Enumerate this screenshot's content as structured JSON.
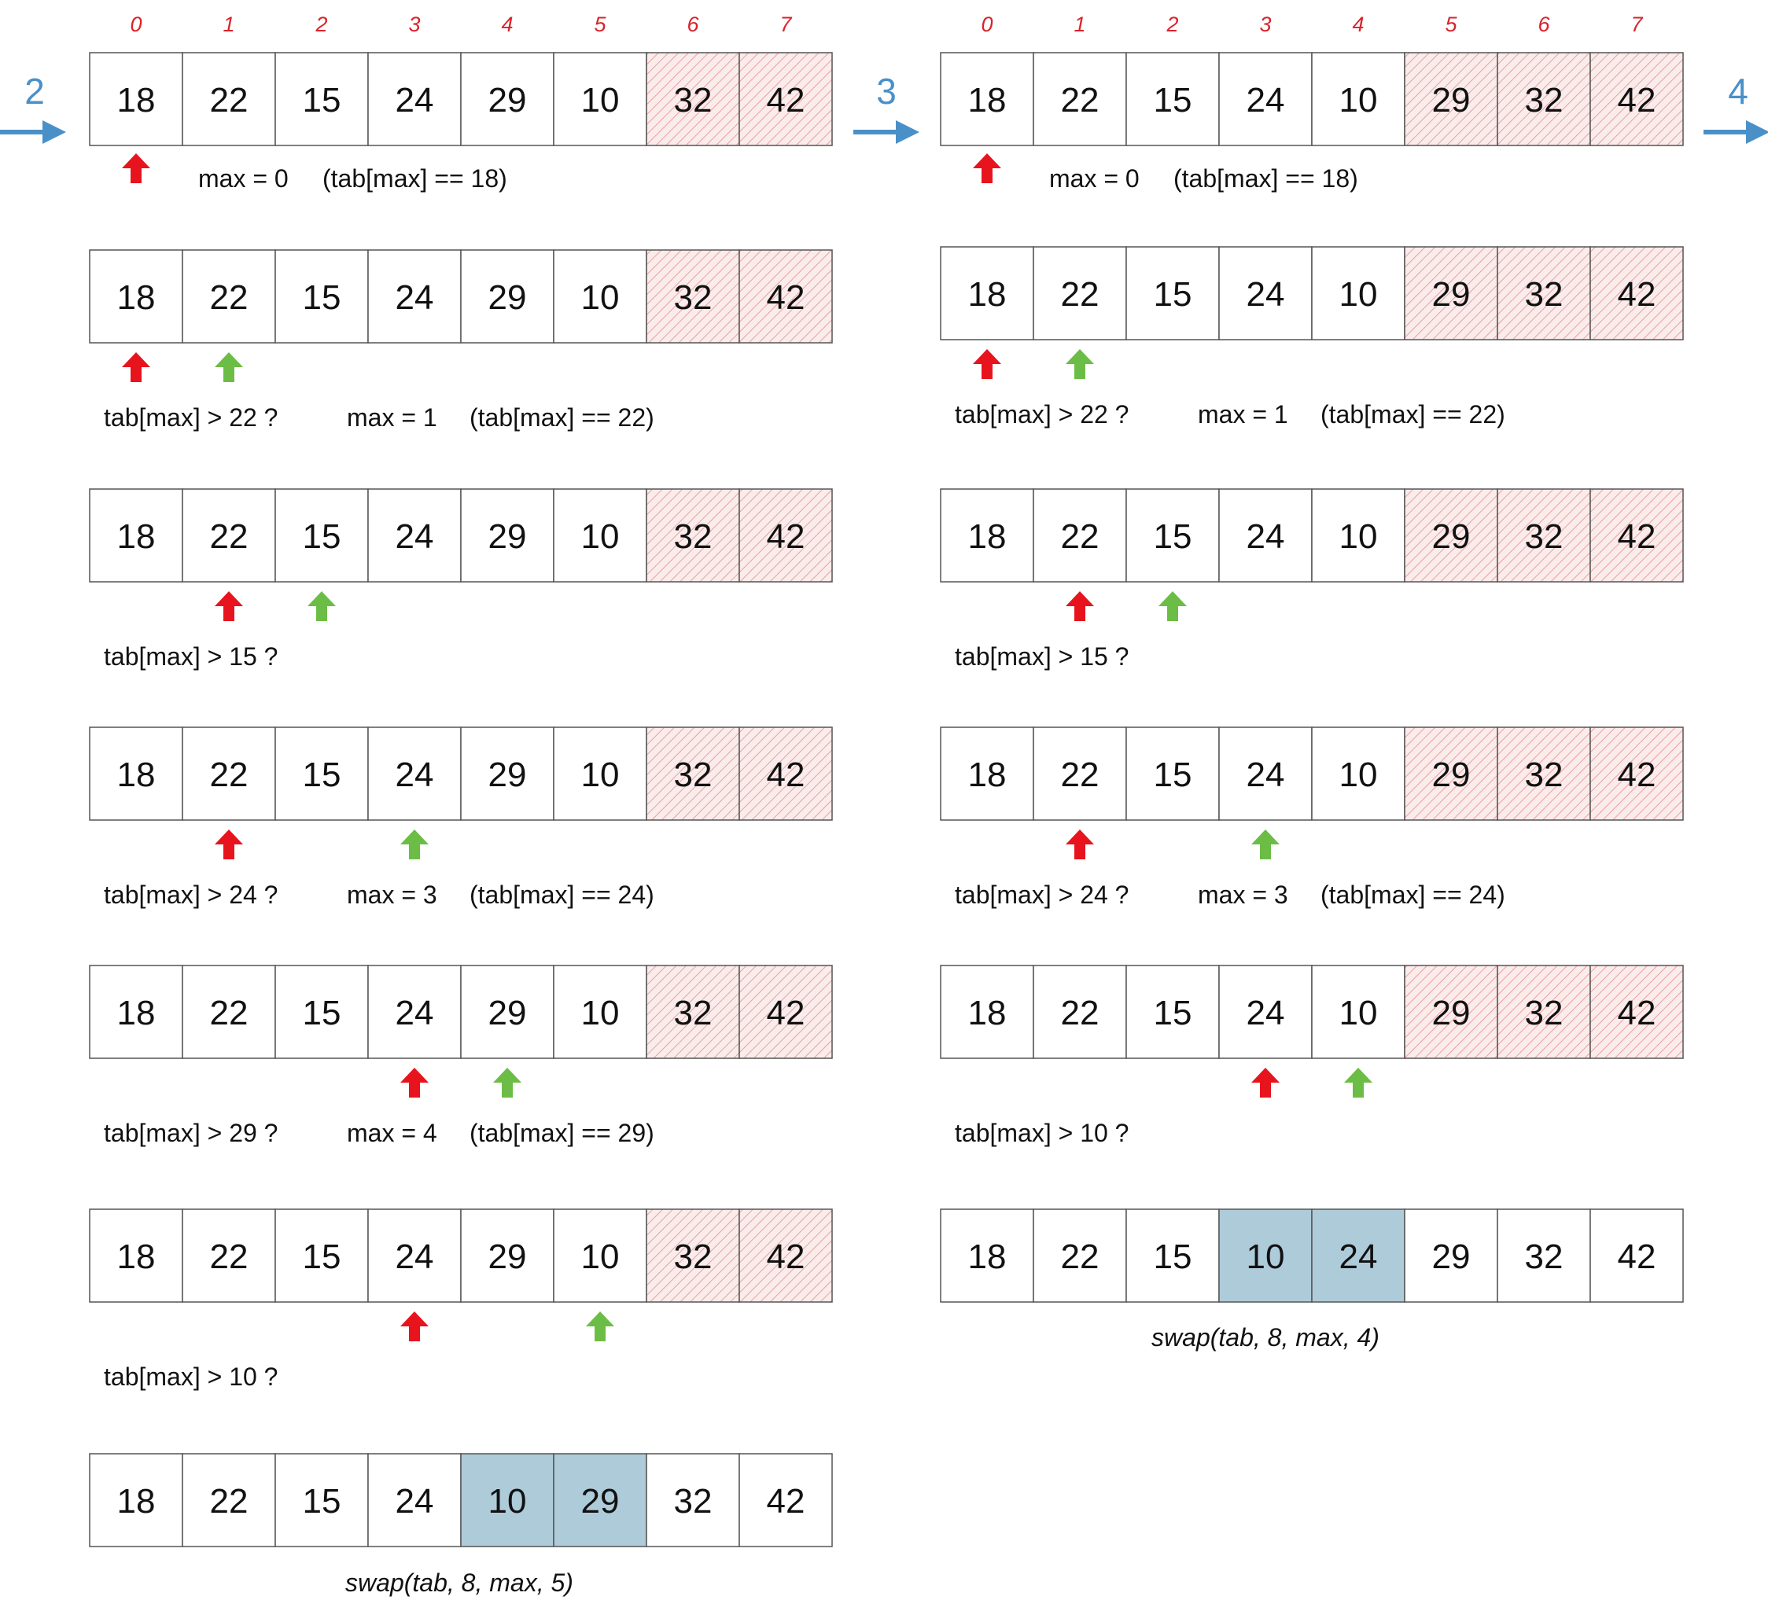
{
  "colors": {
    "border": "#555555",
    "cell_fill": "#ffffff",
    "hatch_fill": "#fbecec",
    "hatch_stroke": "#e8a0a0",
    "swap_fill": "#aecbda",
    "pointer_max": "#e8141d",
    "pointer_scan": "#6cbd45",
    "step_arrow": "#4a90c8",
    "index_text": "#d9232a"
  },
  "icons": {
    "pointer_max": "arrow-up-red-icon",
    "pointer_scan": "arrow-up-green-icon",
    "step": "arrow-right-blue-icon"
  },
  "steps": [
    {
      "label": "2"
    },
    {
      "label": "3"
    },
    {
      "label": "4"
    }
  ],
  "passes": [
    {
      "indices": [
        "0",
        "1",
        "2",
        "3",
        "4",
        "5",
        "6",
        "7"
      ],
      "rows": [
        {
          "values": [
            "18",
            "22",
            "15",
            "24",
            "29",
            "10",
            "32",
            "42"
          ],
          "sorted": [
            6,
            7
          ],
          "swapped": [],
          "max_ptr": 0,
          "scan_ptr": null,
          "notes": [
            "max = 0",
            "(tab[max] == 18)"
          ],
          "caption": ""
        },
        {
          "values": [
            "18",
            "22",
            "15",
            "24",
            "29",
            "10",
            "32",
            "42"
          ],
          "sorted": [
            6,
            7
          ],
          "swapped": [],
          "max_ptr": 0,
          "scan_ptr": 1,
          "notes": [
            "tab[max] > 22 ?",
            "max = 1",
            "(tab[max] == 22)"
          ],
          "caption": ""
        },
        {
          "values": [
            "18",
            "22",
            "15",
            "24",
            "29",
            "10",
            "32",
            "42"
          ],
          "sorted": [
            6,
            7
          ],
          "swapped": [],
          "max_ptr": 1,
          "scan_ptr": 2,
          "notes": [
            "tab[max] > 15 ?"
          ],
          "caption": ""
        },
        {
          "values": [
            "18",
            "22",
            "15",
            "24",
            "29",
            "10",
            "32",
            "42"
          ],
          "sorted": [
            6,
            7
          ],
          "swapped": [],
          "max_ptr": 1,
          "scan_ptr": 3,
          "notes": [
            "tab[max] > 24 ?",
            "max = 3",
            "(tab[max] == 24)"
          ],
          "caption": ""
        },
        {
          "values": [
            "18",
            "22",
            "15",
            "24",
            "29",
            "10",
            "32",
            "42"
          ],
          "sorted": [
            6,
            7
          ],
          "swapped": [],
          "max_ptr": 3,
          "scan_ptr": 4,
          "notes": [
            "tab[max] > 29 ?",
            "max = 4",
            "(tab[max] == 29)"
          ],
          "caption": ""
        },
        {
          "values": [
            "18",
            "22",
            "15",
            "24",
            "29",
            "10",
            "32",
            "42"
          ],
          "sorted": [
            6,
            7
          ],
          "swapped": [],
          "max_ptr": 3,
          "scan_ptr": 5,
          "notes": [
            "tab[max] > 10 ?"
          ],
          "caption": ""
        },
        {
          "values": [
            "18",
            "22",
            "15",
            "24",
            "10",
            "29",
            "32",
            "42"
          ],
          "sorted": [],
          "swapped": [
            4,
            5
          ],
          "max_ptr": null,
          "scan_ptr": null,
          "notes": [],
          "caption": "swap(tab, 8, max, 5)"
        }
      ]
    },
    {
      "indices": [
        "0",
        "1",
        "2",
        "3",
        "4",
        "5",
        "6",
        "7"
      ],
      "rows": [
        {
          "values": [
            "18",
            "22",
            "15",
            "24",
            "10",
            "29",
            "32",
            "42"
          ],
          "sorted": [
            5,
            6,
            7
          ],
          "swapped": [],
          "max_ptr": 0,
          "scan_ptr": null,
          "notes": [
            "max = 0",
            "(tab[max] == 18)"
          ],
          "caption": ""
        },
        {
          "values": [
            "18",
            "22",
            "15",
            "24",
            "10",
            "29",
            "32",
            "42"
          ],
          "sorted": [
            5,
            6,
            7
          ],
          "swapped": [],
          "max_ptr": 0,
          "scan_ptr": 1,
          "notes": [
            "tab[max] > 22 ?",
            "max = 1",
            "(tab[max] == 22)"
          ],
          "caption": ""
        },
        {
          "values": [
            "18",
            "22",
            "15",
            "24",
            "10",
            "29",
            "32",
            "42"
          ],
          "sorted": [
            5,
            6,
            7
          ],
          "swapped": [],
          "max_ptr": 1,
          "scan_ptr": 2,
          "notes": [
            "tab[max] > 15 ?"
          ],
          "caption": ""
        },
        {
          "values": [
            "18",
            "22",
            "15",
            "24",
            "10",
            "29",
            "32",
            "42"
          ],
          "sorted": [
            5,
            6,
            7
          ],
          "swapped": [],
          "max_ptr": 1,
          "scan_ptr": 3,
          "notes": [
            "tab[max] > 24 ?",
            "max = 3",
            "(tab[max] == 24)"
          ],
          "caption": ""
        },
        {
          "values": [
            "18",
            "22",
            "15",
            "24",
            "10",
            "29",
            "32",
            "42"
          ],
          "sorted": [
            5,
            6,
            7
          ],
          "swapped": [],
          "max_ptr": 3,
          "scan_ptr": 4,
          "notes": [
            "tab[max] > 10 ?"
          ],
          "caption": ""
        },
        {
          "values": [
            "18",
            "22",
            "15",
            "10",
            "24",
            "29",
            "32",
            "42"
          ],
          "sorted": [],
          "swapped": [
            3,
            4
          ],
          "max_ptr": null,
          "scan_ptr": null,
          "notes": [],
          "caption": "swap(tab, 8, max, 4)"
        }
      ]
    }
  ]
}
